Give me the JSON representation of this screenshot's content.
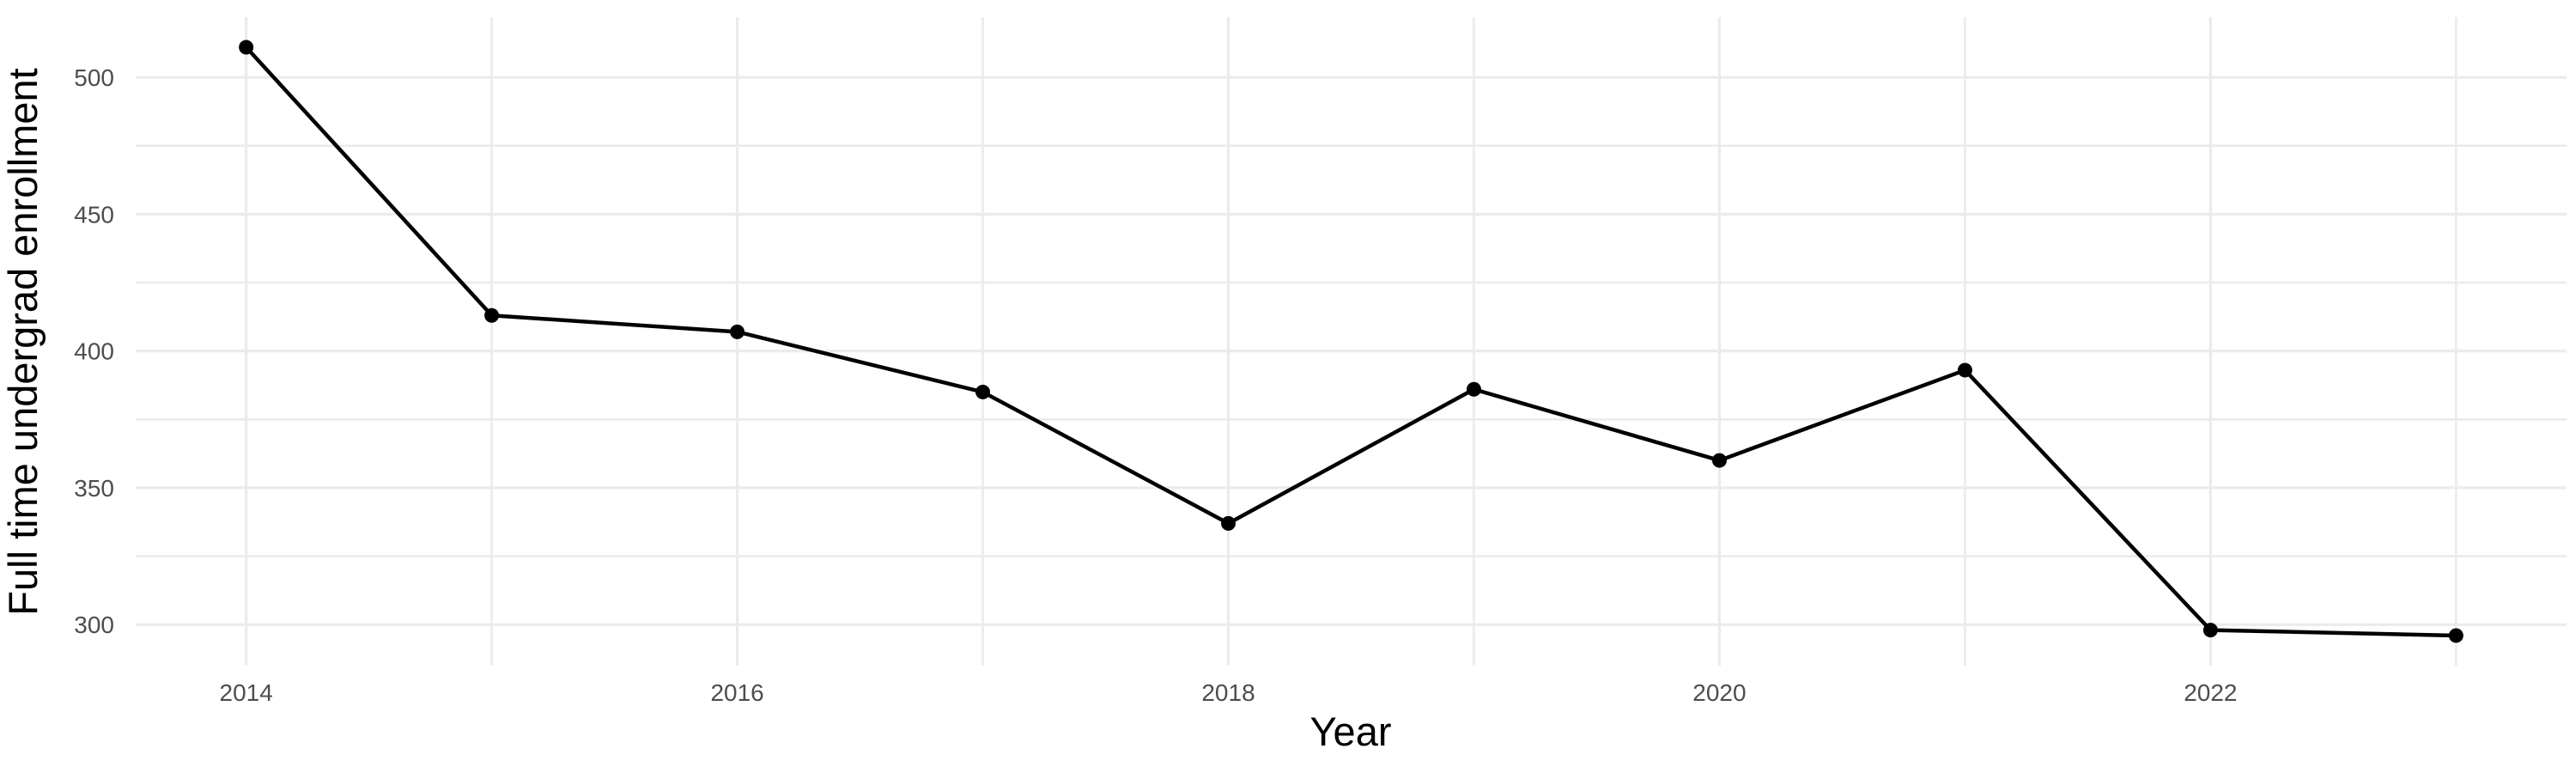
{
  "chart_data": {
    "type": "line",
    "title": "",
    "xlabel": "Year",
    "ylabel": "Full time undergrad enrollment",
    "series": [
      {
        "name": "Full time undergrad enrollment",
        "x": [
          2014,
          2015,
          2016,
          2017,
          2018,
          2019,
          2020,
          2021,
          2022,
          2023
        ],
        "values": [
          511,
          413,
          407,
          385,
          337,
          386,
          360,
          393,
          298,
          296
        ]
      }
    ],
    "x_tick_labels": [
      "2014",
      "2016",
      "2018",
      "2020",
      "2022"
    ],
    "x_major_ticks": [
      2014,
      2016,
      2018,
      2020,
      2022
    ],
    "x_minor_gridlines": [
      2015,
      2017,
      2019,
      2021,
      2023
    ],
    "y_tick_labels": [
      "300",
      "350",
      "400",
      "450",
      "500"
    ],
    "y_major_ticks": [
      300,
      350,
      400,
      450,
      500
    ],
    "y_minor_gridlines": [
      325,
      375,
      425,
      475
    ],
    "xlim": [
      2013.55,
      2023.45
    ],
    "ylim": [
      285,
      522
    ],
    "grid": true,
    "legend": false,
    "point_marker": "filled-circle",
    "colors": {
      "line": "#000000",
      "point": "#000000",
      "grid_major": "#EBEBEB",
      "grid_minor": "#EBEBEB",
      "tick_label": "#4D4D4D",
      "axis_title": "#000000",
      "background": "#FFFFFF"
    }
  }
}
